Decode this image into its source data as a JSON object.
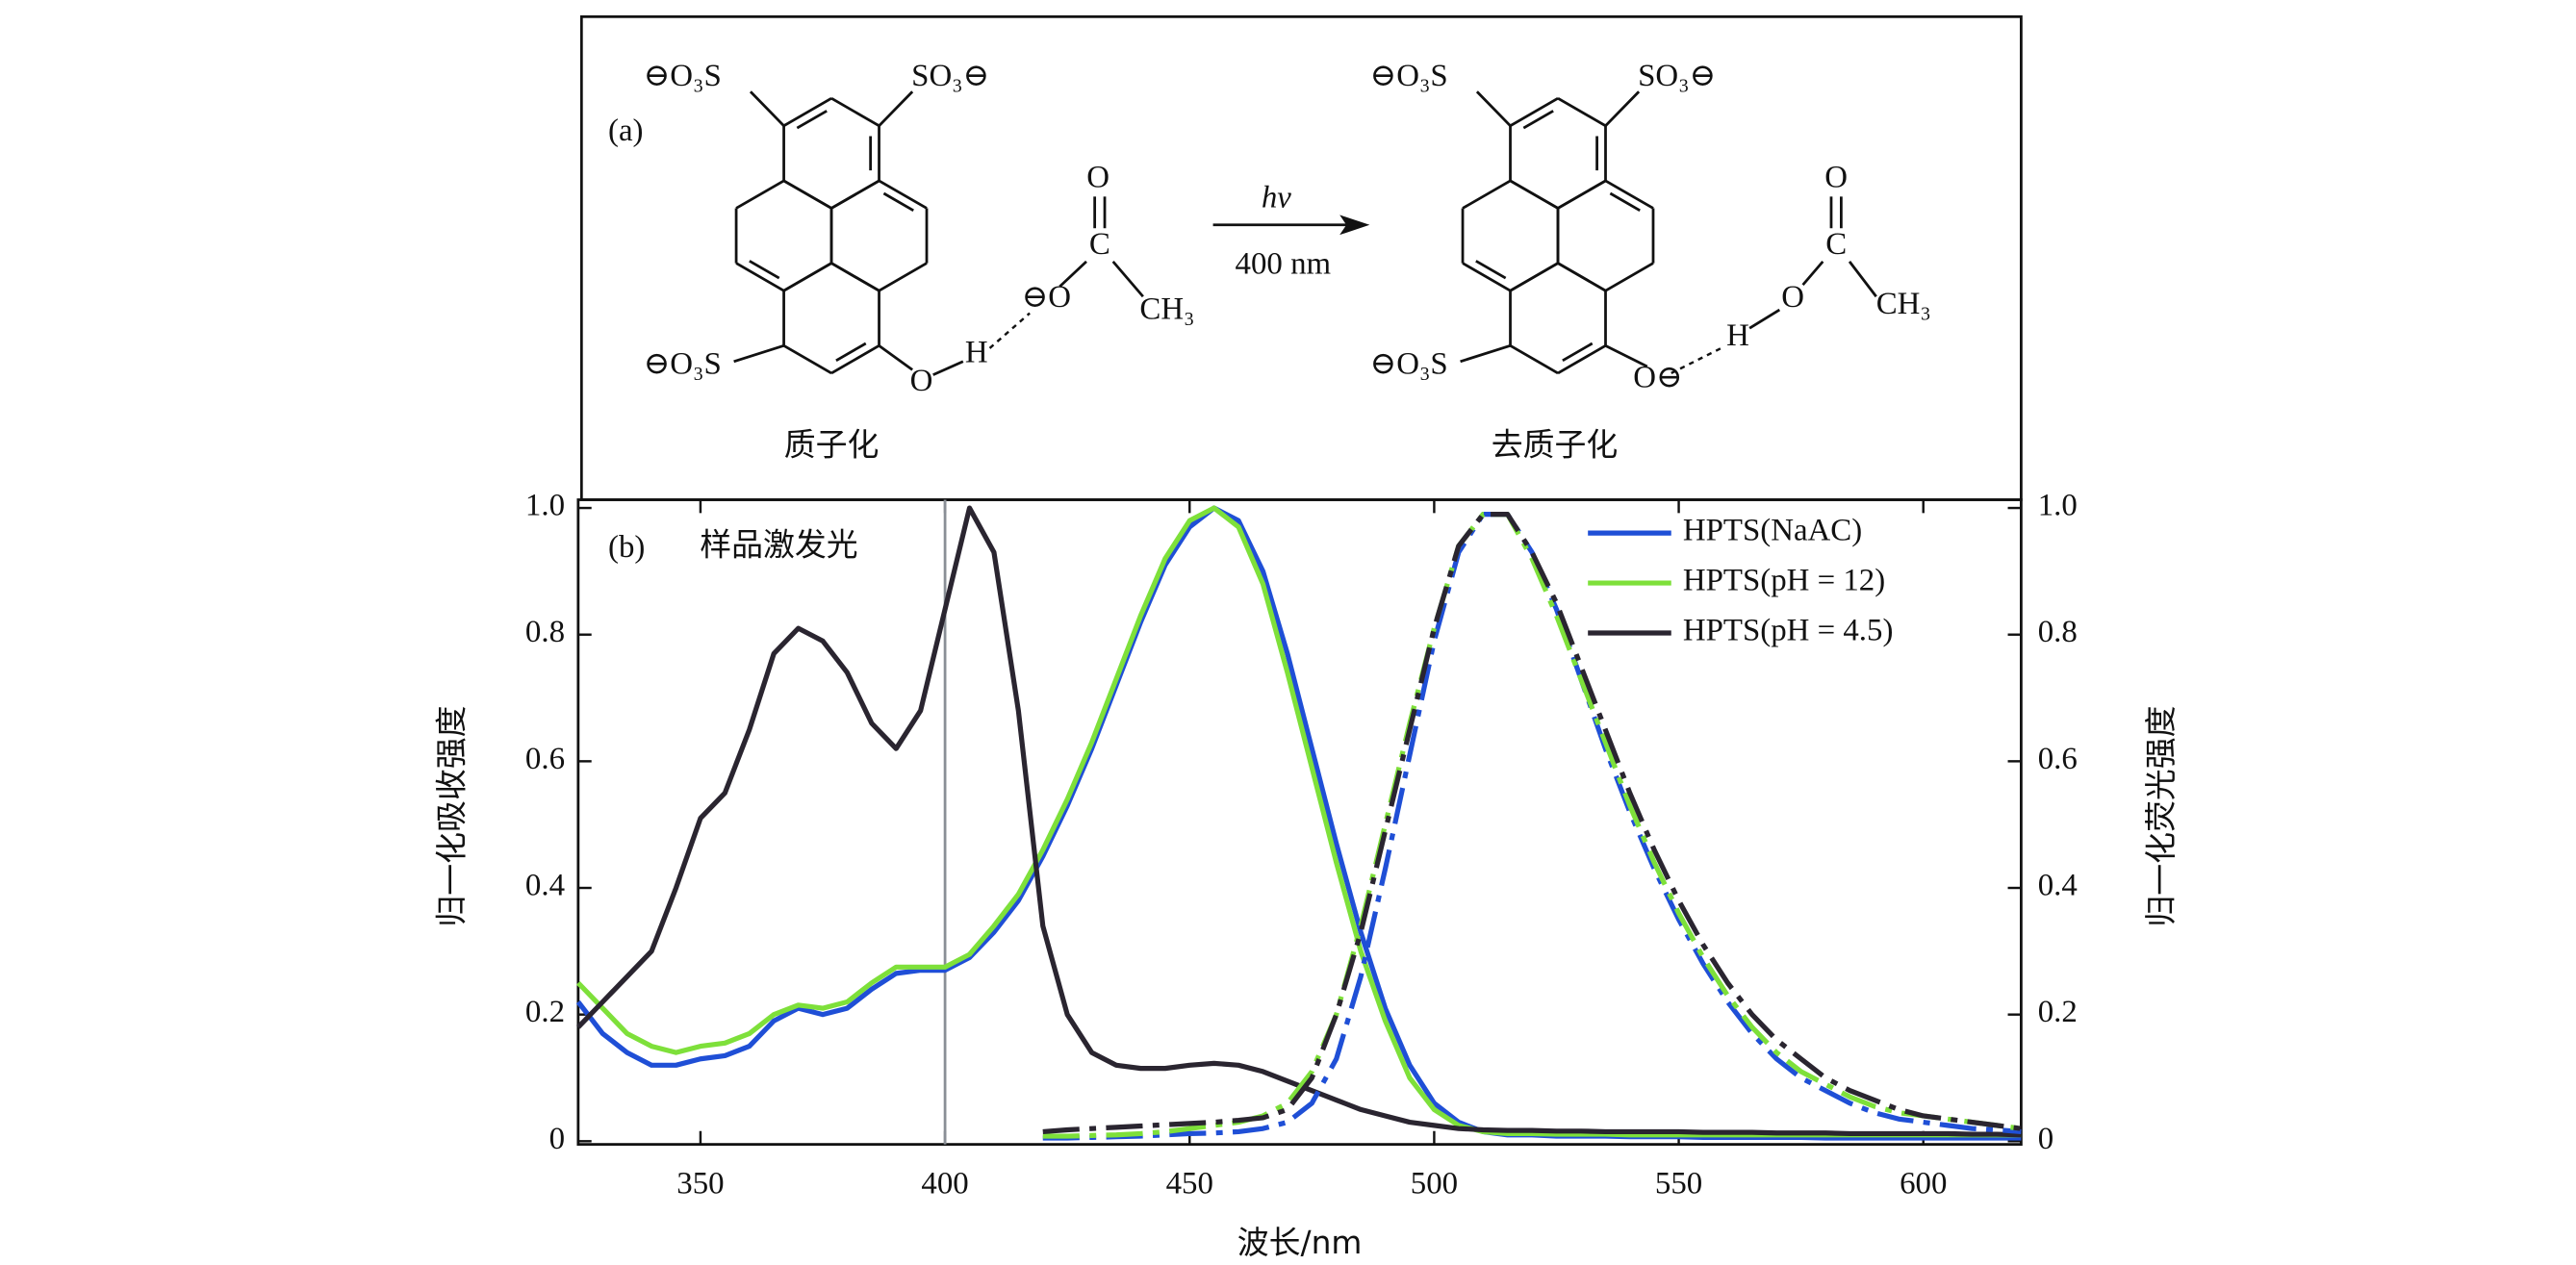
{
  "diagram": {
    "panel_label": "(a)",
    "reactant": {
      "label": "质子化",
      "so3_top_left": "⊖O₃S",
      "so3_top_right": "SO₃⊖",
      "so3_bottom": "⊖O₃S",
      "oxygen": "O",
      "hydrogen": "H",
      "acetate_o_double": "O",
      "acetate_c": "C",
      "acetate_o": "⊖O",
      "acetate_ch3": "CH₃"
    },
    "arrow": {
      "top": "hν",
      "bottom": "400 nm"
    },
    "product": {
      "label": "去质子化",
      "so3_top_left": "⊖O₃S",
      "so3_top_right": "SO₃⊖",
      "so3_bottom": "⊖O₃S",
      "oxygen": "O⊖",
      "hydrogen": "H",
      "acetate_o_double": "O",
      "acetate_c": "C",
      "acetate_o": "O",
      "acetate_ch3": "CH₃"
    }
  },
  "chart_data": {
    "type": "line",
    "panel_label": "(b)",
    "xlabel": "波长/nm",
    "ylabel": "归一化吸收强度",
    "y2label": "归一化荧光强度",
    "annotation": {
      "text": "样品激发光",
      "x": 400
    },
    "legend": "upper right",
    "xlim": [
      325,
      620
    ],
    "xticks": [
      350,
      400,
      450,
      500,
      550,
      600
    ],
    "ylim": [
      -0.005,
      1.013
    ],
    "yticks": [
      0,
      0.2,
      0.4,
      0.6,
      0.8,
      {
        "value": 1,
        "label": "1.0"
      }
    ],
    "y2lim": [
      -0.005,
      1.013
    ],
    "y2ticks": [
      0,
      0.2,
      0.4,
      0.6,
      0.8,
      {
        "value": 1,
        "label": "1.0"
      }
    ],
    "x": [
      325,
      330,
      335,
      340,
      345,
      350,
      355,
      360,
      365,
      370,
      375,
      380,
      385,
      390,
      395,
      400,
      405,
      410,
      415,
      420,
      425,
      430,
      435,
      440,
      445,
      450,
      455,
      460,
      465,
      470,
      475,
      480,
      485,
      490,
      495,
      500,
      505,
      510,
      515,
      520,
      525,
      530,
      535,
      540,
      545,
      550,
      555,
      560,
      565,
      570,
      575,
      580,
      585,
      590,
      595,
      600,
      605,
      610,
      615,
      620
    ],
    "series": [
      {
        "name": "HPTS(NaAC)",
        "color": "#1f4fd6",
        "values": [
          0.22,
          0.17,
          0.14,
          0.12,
          0.12,
          0.13,
          0.135,
          0.15,
          0.19,
          0.21,
          0.2,
          0.21,
          0.24,
          0.265,
          0.27,
          0.27,
          0.29,
          0.33,
          0.38,
          0.45,
          0.53,
          0.62,
          0.72,
          0.82,
          0.91,
          0.97,
          1.0,
          0.98,
          0.9,
          0.77,
          0.62,
          0.47,
          0.33,
          0.21,
          0.12,
          0.06,
          0.03,
          0.015,
          0.01,
          0.01,
          0.008,
          0.008,
          0.008,
          0.007,
          0.007,
          0.007,
          0.006,
          0.006,
          0.006,
          0.006,
          0.006,
          0.005,
          0.005,
          0.005,
          0.005,
          0.005,
          0.005,
          0.005,
          0.005,
          0.005
        ]
      },
      {
        "name": "HPTS(pH = 12)",
        "color": "#7ee03a",
        "values": [
          0.25,
          0.21,
          0.17,
          0.15,
          0.14,
          0.15,
          0.155,
          0.17,
          0.2,
          0.215,
          0.21,
          0.22,
          0.25,
          0.275,
          0.275,
          0.275,
          0.295,
          0.34,
          0.39,
          0.46,
          0.54,
          0.63,
          0.73,
          0.83,
          0.92,
          0.98,
          1.0,
          0.97,
          0.88,
          0.74,
          0.59,
          0.44,
          0.3,
          0.19,
          0.1,
          0.05,
          0.025,
          0.015,
          0.012,
          0.012,
          0.011,
          0.011,
          0.011,
          0.01,
          0.01,
          0.01,
          0.01,
          0.01,
          0.01,
          0.01,
          0.01,
          0.01,
          0.01,
          0.01,
          0.01,
          0.01,
          0.01,
          0.01,
          0.01,
          0.01
        ]
      },
      {
        "name": "HPTS(pH = 4.5)",
        "color": "#2a2530",
        "values": [
          0.18,
          0.22,
          0.26,
          0.3,
          0.4,
          0.51,
          0.55,
          0.65,
          0.77,
          0.81,
          0.79,
          0.74,
          0.66,
          0.62,
          0.68,
          0.84,
          1.0,
          0.93,
          0.68,
          0.34,
          0.2,
          0.14,
          0.12,
          0.115,
          0.115,
          0.12,
          0.123,
          0.12,
          0.11,
          0.095,
          0.08,
          0.065,
          0.05,
          0.04,
          0.03,
          0.025,
          0.02,
          0.018,
          0.017,
          0.017,
          0.016,
          0.016,
          0.015,
          0.015,
          0.015,
          0.015,
          0.014,
          0.014,
          0.014,
          0.013,
          0.013,
          0.013,
          0.012,
          0.012,
          0.012,
          0.012,
          0.012,
          0.011,
          0.011,
          0.01
        ]
      },
      {
        "color": "#1f4fd6",
        "axis": "y2",
        "values": [
          null,
          null,
          null,
          null,
          null,
          null,
          null,
          null,
          null,
          null,
          null,
          null,
          null,
          null,
          null,
          null,
          null,
          null,
          null,
          0.005,
          0.005,
          0.006,
          0.007,
          0.008,
          0.01,
          0.012,
          0.013,
          0.015,
          0.02,
          0.03,
          0.06,
          0.13,
          0.26,
          0.43,
          0.61,
          0.79,
          0.93,
          0.99,
          0.99,
          0.93,
          0.84,
          0.73,
          0.62,
          0.52,
          0.43,
          0.35,
          0.28,
          0.22,
          0.17,
          0.13,
          0.1,
          0.08,
          0.06,
          0.045,
          0.035,
          0.03,
          0.025,
          0.02,
          0.018,
          0.015
        ]
      },
      {
        "color": "#7ee03a",
        "axis": "y2",
        "values": [
          null,
          null,
          null,
          null,
          null,
          null,
          null,
          null,
          null,
          null,
          null,
          null,
          null,
          null,
          null,
          null,
          null,
          null,
          null,
          0.008,
          0.008,
          0.009,
          0.01,
          0.012,
          0.015,
          0.02,
          0.025,
          0.03,
          0.04,
          0.06,
          0.11,
          0.2,
          0.34,
          0.5,
          0.66,
          0.81,
          0.94,
          0.99,
          0.99,
          0.92,
          0.83,
          0.73,
          0.63,
          0.53,
          0.44,
          0.36,
          0.29,
          0.23,
          0.18,
          0.14,
          0.11,
          0.09,
          0.07,
          0.055,
          0.045,
          0.04,
          0.035,
          0.03,
          0.025,
          0.02
        ]
      },
      {
        "color": "#2a2530",
        "axis": "y2",
        "values": [
          null,
          null,
          null,
          null,
          null,
          null,
          null,
          null,
          null,
          null,
          null,
          null,
          null,
          null,
          null,
          null,
          null,
          null,
          null,
          0.015,
          0.018,
          0.02,
          0.022,
          0.024,
          0.026,
          0.028,
          0.03,
          0.033,
          0.037,
          0.05,
          0.1,
          0.2,
          0.33,
          0.49,
          0.65,
          0.81,
          0.94,
          0.99,
          0.99,
          0.93,
          0.85,
          0.75,
          0.65,
          0.55,
          0.46,
          0.38,
          0.31,
          0.25,
          0.2,
          0.16,
          0.13,
          0.1,
          0.08,
          0.065,
          0.05,
          0.04,
          0.035,
          0.03,
          0.025,
          0.02
        ]
      }
    ]
  }
}
